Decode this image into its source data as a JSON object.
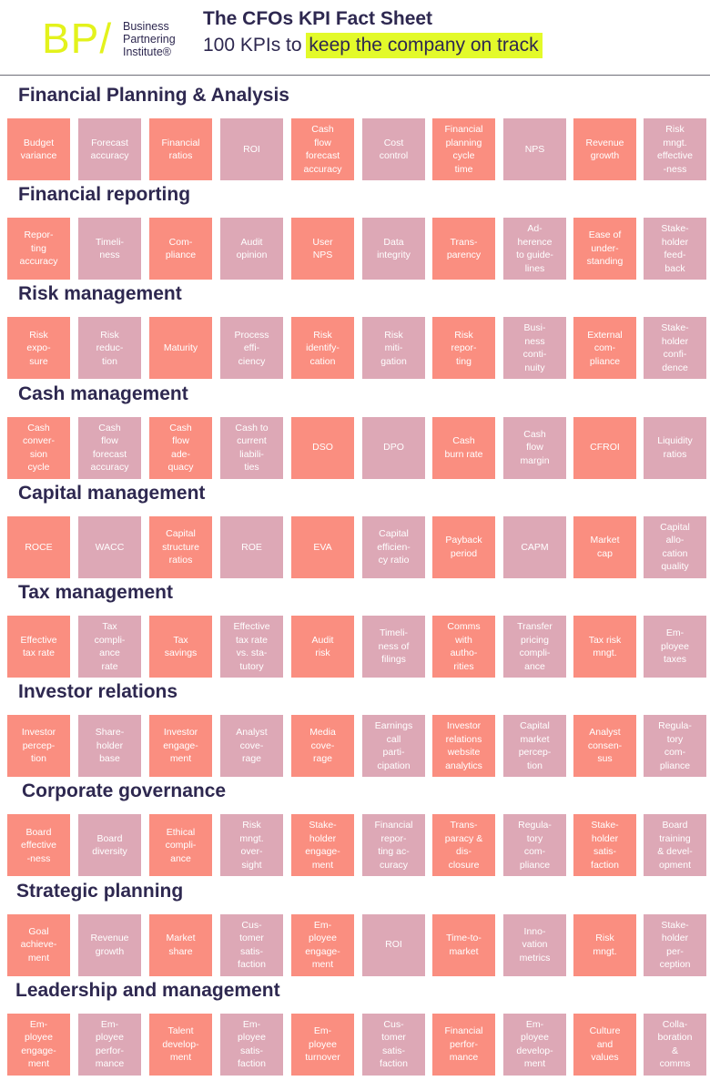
{
  "header": {
    "logo_letters": "BP/",
    "logo_lines": [
      "Business",
      "Partnering",
      "Institute®"
    ],
    "title": "The CFOs KPI Fact Sheet",
    "subtitle_prefix": "100 KPIs to",
    "subtitle_highlight": "keep the company on track"
  },
  "colors": {
    "coral": "#fa8e80",
    "pink": "#dda8b6",
    "accent": "#e3f21c",
    "text": "#2e2850"
  },
  "sections": [
    {
      "title": "Financial Planning & Analysis",
      "kpis": [
        {
          "label": "Budget\nvariance",
          "color": "coral"
        },
        {
          "label": "Forecast\naccuracy",
          "color": "pink"
        },
        {
          "label": "Financial\nratios",
          "color": "coral"
        },
        {
          "label": "ROI",
          "color": "pink"
        },
        {
          "label": "Cash\nflow\nforecast\naccuracy",
          "color": "coral"
        },
        {
          "label": "Cost\ncontrol",
          "color": "pink"
        },
        {
          "label": "Financial\nplanning\ncycle\ntime",
          "color": "coral"
        },
        {
          "label": "NPS",
          "color": "pink"
        },
        {
          "label": "Revenue\ngrowth",
          "color": "coral"
        },
        {
          "label": "Risk\nmngt.\neffective\n-ness",
          "color": "pink"
        }
      ]
    },
    {
      "title": "Financial reporting",
      "kpis": [
        {
          "label": "Repor-\nting\naccuracy",
          "color": "coral"
        },
        {
          "label": "Timeli-\nness",
          "color": "pink"
        },
        {
          "label": "Com-\npliance",
          "color": "coral"
        },
        {
          "label": "Audit\nopinion",
          "color": "pink"
        },
        {
          "label": "User\nNPS",
          "color": "coral"
        },
        {
          "label": "Data\nintegrity",
          "color": "pink"
        },
        {
          "label": "Trans-\nparency",
          "color": "coral"
        },
        {
          "label": "Ad-\nherence\nto guide-\nlines",
          "color": "pink"
        },
        {
          "label": "Ease of\nunder-\nstanding",
          "color": "coral"
        },
        {
          "label": "Stake-\nholder\nfeed-\nback",
          "color": "pink"
        }
      ]
    },
    {
      "title": "Risk management",
      "kpis": [
        {
          "label": "Risk\nexpo-\nsure",
          "color": "coral"
        },
        {
          "label": "Risk\nreduc-\ntion",
          "color": "pink"
        },
        {
          "label": "Maturity",
          "color": "coral"
        },
        {
          "label": "Process\neffi-\nciency",
          "color": "pink"
        },
        {
          "label": "Risk\nidentify-\ncation",
          "color": "coral"
        },
        {
          "label": "Risk\nmiti-\ngation",
          "color": "pink"
        },
        {
          "label": "Risk\nrepor-\nting",
          "color": "coral"
        },
        {
          "label": "Busi-\nness\nconti-\nnuity",
          "color": "pink"
        },
        {
          "label": "External\ncom-\npliance",
          "color": "coral"
        },
        {
          "label": "Stake-\nholder\nconfi-\ndence",
          "color": "pink"
        }
      ]
    },
    {
      "title": "Cash management",
      "kpis": [
        {
          "label": "Cash\nconver-\nsion\ncycle",
          "color": "coral"
        },
        {
          "label": "Cash\nflow\nforecast\naccuracy",
          "color": "pink"
        },
        {
          "label": "Cash\nflow\nade-\nquacy",
          "color": "coral"
        },
        {
          "label": "Cash to\ncurrent\nliabili-\nties",
          "color": "pink"
        },
        {
          "label": "DSO",
          "color": "coral"
        },
        {
          "label": "DPO",
          "color": "pink"
        },
        {
          "label": "Cash\nburn rate",
          "color": "coral"
        },
        {
          "label": "Cash\nflow\nmargin",
          "color": "pink"
        },
        {
          "label": "CFROI",
          "color": "coral"
        },
        {
          "label": "Liquidity\nratios",
          "color": "pink"
        }
      ]
    },
    {
      "title": "Capital management",
      "kpis": [
        {
          "label": "ROCE",
          "color": "coral"
        },
        {
          "label": "WACC",
          "color": "pink"
        },
        {
          "label": "Capital\nstructure\nratios",
          "color": "coral"
        },
        {
          "label": "ROE",
          "color": "pink"
        },
        {
          "label": "EVA",
          "color": "coral"
        },
        {
          "label": "Capital\nefficien-\ncy ratio",
          "color": "pink"
        },
        {
          "label": "Payback\nperiod",
          "color": "coral"
        },
        {
          "label": "CAPM",
          "color": "pink"
        },
        {
          "label": "Market\ncap",
          "color": "coral"
        },
        {
          "label": "Capital\nallo-\ncation\nquality",
          "color": "pink"
        }
      ]
    },
    {
      "title": "Tax management",
      "kpis": [
        {
          "label": "Effective\ntax rate",
          "color": "coral"
        },
        {
          "label": "Tax\ncompli-\nance\nrate",
          "color": "pink"
        },
        {
          "label": "Tax\nsavings",
          "color": "coral"
        },
        {
          "label": "Effective\ntax rate\nvs. sta-\ntutory",
          "color": "pink"
        },
        {
          "label": "Audit\nrisk",
          "color": "coral"
        },
        {
          "label": "Timeli-\nness of\nfilings",
          "color": "pink"
        },
        {
          "label": "Comms\nwith\nautho-\nrities",
          "color": "coral"
        },
        {
          "label": "Transfer\npricing\ncompli-\nance",
          "color": "pink"
        },
        {
          "label": "Tax risk\nmngt.",
          "color": "coral"
        },
        {
          "label": "Em-\nployee\ntaxes",
          "color": "pink"
        }
      ]
    },
    {
      "title": "Investor relations",
      "kpis": [
        {
          "label": "Investor\npercep-\ntion",
          "color": "coral"
        },
        {
          "label": "Share-\nholder\nbase",
          "color": "pink"
        },
        {
          "label": "Investor\nengage-\nment",
          "color": "coral"
        },
        {
          "label": "Analyst\ncove-\nrage",
          "color": "pink"
        },
        {
          "label": "Media\ncove-\nrage",
          "color": "coral"
        },
        {
          "label": "Earnings\ncall\nparti-\ncipation",
          "color": "pink"
        },
        {
          "label": "Investor\nrelations\nwebsite\nanalytics",
          "color": "coral"
        },
        {
          "label": "Capital\nmarket\npercep-\ntion",
          "color": "pink"
        },
        {
          "label": "Analyst\nconsen-\nsus",
          "color": "coral"
        },
        {
          "label": "Regula-\ntory\ncom-\npliance",
          "color": "pink"
        }
      ]
    },
    {
      "title": "Corporate governance",
      "kpis": [
        {
          "label": "Board\neffective\n-ness",
          "color": "coral"
        },
        {
          "label": "Board\ndiversity",
          "color": "pink"
        },
        {
          "label": "Ethical\ncompli-\nance",
          "color": "coral"
        },
        {
          "label": "Risk\nmngt.\nover-\nsight",
          "color": "pink"
        },
        {
          "label": "Stake-\nholder\nengage-\nment",
          "color": "coral"
        },
        {
          "label": "Financial\nrepor-\nting ac-\ncuracy",
          "color": "pink"
        },
        {
          "label": "Trans-\nparacy &\ndis-\nclosure",
          "color": "coral"
        },
        {
          "label": "Regula-\ntory\ncom-\npliance",
          "color": "pink"
        },
        {
          "label": "Stake-\nholder\nsatis-\nfaction",
          "color": "coral"
        },
        {
          "label": "Board\ntraining\n& devel-\nopment",
          "color": "pink"
        }
      ]
    },
    {
      "title": "Strategic planning",
      "kpis": [
        {
          "label": "Goal\nachieve-\nment",
          "color": "coral"
        },
        {
          "label": "Revenue\ngrowth",
          "color": "pink"
        },
        {
          "label": "Market\nshare",
          "color": "coral"
        },
        {
          "label": "Cus-\ntomer\nsatis-\nfaction",
          "color": "pink"
        },
        {
          "label": "Em-\nployee\nengage-\nment",
          "color": "coral"
        },
        {
          "label": "ROI",
          "color": "pink"
        },
        {
          "label": "Time-to-\nmarket",
          "color": "coral"
        },
        {
          "label": "Inno-\nvation\nmetrics",
          "color": "pink"
        },
        {
          "label": "Risk\nmngt.",
          "color": "coral"
        },
        {
          "label": "Stake-\nholder\nper-\nception",
          "color": "pink"
        }
      ]
    },
    {
      "title": "Leadership and management",
      "kpis": [
        {
          "label": "Em-\nployee\nengage-\nment",
          "color": "coral"
        },
        {
          "label": "Em-\nployee\nperfor-\nmance",
          "color": "pink"
        },
        {
          "label": "Talent\ndevelop-\nment",
          "color": "coral"
        },
        {
          "label": "Em-\nployee\nsatis-\nfaction",
          "color": "pink"
        },
        {
          "label": "Em-\nployee\nturnover",
          "color": "coral"
        },
        {
          "label": "Cus-\ntomer\nsatis-\nfaction",
          "color": "pink"
        },
        {
          "label": "Financial\nperfor-\nmance",
          "color": "coral"
        },
        {
          "label": "Em-\nployee\ndevelop-\nment",
          "color": "pink"
        },
        {
          "label": "Culture\nand\nvalues",
          "color": "coral"
        },
        {
          "label": "Colla-\nboration\n&\ncomms",
          "color": "pink"
        }
      ]
    }
  ]
}
